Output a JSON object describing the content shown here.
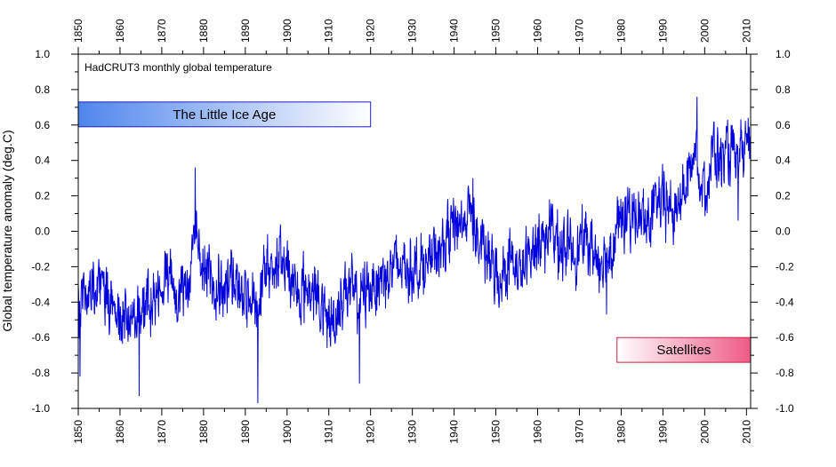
{
  "chart_data": {
    "type": "line",
    "title": "HadCRUT3 monthly global temperature",
    "ylabel": "Global temperature anomaly (deg.C)",
    "xlabel": "",
    "xlim": [
      1850,
      2011
    ],
    "ylim": [
      -1.0,
      1.0
    ],
    "x_ticks": [
      1850,
      1860,
      1870,
      1880,
      1890,
      1900,
      1910,
      1920,
      1930,
      1940,
      1950,
      1960,
      1970,
      1980,
      1990,
      2000,
      2010
    ],
    "y_ticks": [
      "1.0",
      "0.8",
      "0.6",
      "0.4",
      "0.2",
      "0.0",
      "-0.2",
      "-0.4",
      "-0.6",
      "-0.8",
      "-1.0"
    ],
    "y_tick_values": [
      1.0,
      0.8,
      0.6,
      0.4,
      0.2,
      0.0,
      -0.2,
      -0.4,
      -0.6,
      -0.8,
      -1.0
    ],
    "line_color": "#0000dd",
    "grid": false,
    "annotations": [
      {
        "name": "little-ice-age",
        "label": "The Little Ice Age",
        "x_start": 1850,
        "x_end": 1920,
        "y_top": 0.73,
        "y_bottom": 0.59,
        "gradient_from": "#4f86ec",
        "gradient_to": "#ffffff",
        "border": "#1f1fbf"
      },
      {
        "name": "satellites",
        "label": "Satellites",
        "x_start": 1979,
        "x_end": 2011,
        "y_top": -0.6,
        "y_bottom": -0.74,
        "gradient_from": "#ffffff",
        "gradient_to": "#ee5a88",
        "border": "#cc2244"
      }
    ],
    "anchors": {
      "x": [
        1850,
        1853,
        1856,
        1860,
        1863,
        1865,
        1868,
        1871,
        1874,
        1877,
        1878,
        1880,
        1883,
        1886,
        1890,
        1893,
        1896,
        1900,
        1903,
        1906,
        1909,
        1911,
        1914,
        1917,
        1920,
        1923,
        1926,
        1930,
        1934,
        1937,
        1940,
        1942,
        1944,
        1946,
        1949,
        1951,
        1953,
        1956,
        1960,
        1963,
        1966,
        1969,
        1972,
        1975,
        1977,
        1980,
        1983,
        1986,
        1989,
        1991,
        1993,
        1995,
        1997,
        1998,
        1999,
        2000,
        2002,
        2004,
        2006,
        2008,
        2010,
        2011
      ],
      "y": [
        -0.4,
        -0.3,
        -0.33,
        -0.45,
        -0.5,
        -0.45,
        -0.4,
        -0.25,
        -0.4,
        -0.2,
        0.05,
        -0.2,
        -0.3,
        -0.28,
        -0.35,
        -0.4,
        -0.2,
        -0.18,
        -0.35,
        -0.3,
        -0.5,
        -0.52,
        -0.3,
        -0.4,
        -0.3,
        -0.25,
        -0.2,
        -0.2,
        -0.18,
        -0.1,
        0.05,
        0.05,
        0.12,
        -0.08,
        -0.2,
        -0.28,
        -0.15,
        -0.25,
        -0.05,
        0.0,
        -0.1,
        -0.1,
        -0.05,
        -0.18,
        -0.1,
        0.05,
        0.1,
        0.05,
        0.15,
        0.15,
        0.1,
        0.25,
        0.35,
        0.55,
        0.25,
        0.25,
        0.45,
        0.4,
        0.45,
        0.35,
        0.48,
        0.4
      ]
    },
    "extremes": [
      {
        "x": 1850.4,
        "y": -0.82
      },
      {
        "x": 1864.6,
        "y": -0.93
      },
      {
        "x": 1878.0,
        "y": 0.36
      },
      {
        "x": 1893.0,
        "y": -0.97
      },
      {
        "x": 1917.3,
        "y": -0.86
      },
      {
        "x": 1944.5,
        "y": 0.3
      },
      {
        "x": 1976.5,
        "y": -0.47
      },
      {
        "x": 1998.2,
        "y": 0.76
      },
      {
        "x": 2008.0,
        "y": 0.06
      }
    ],
    "noise_amplitude": 0.13,
    "samples_per_year": 12
  }
}
